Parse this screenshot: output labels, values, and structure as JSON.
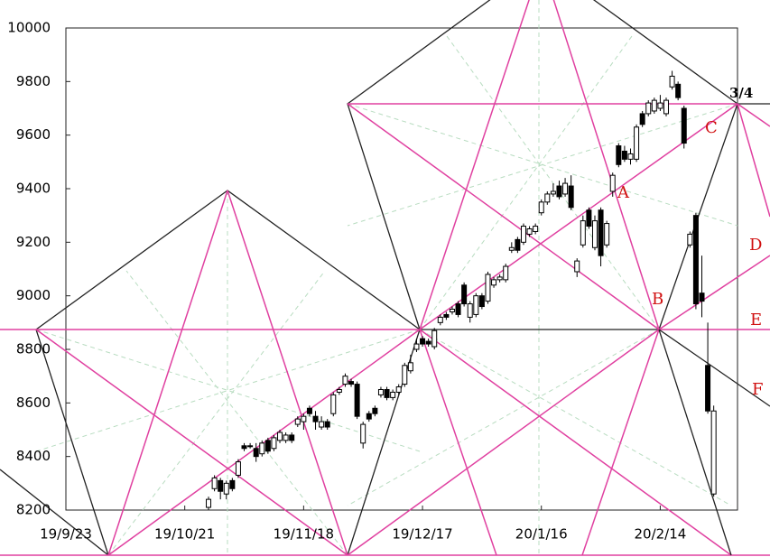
{
  "chart_data": {
    "type": "candlestick",
    "x": [
      24,
      25,
      26,
      27,
      28,
      29,
      30,
      31,
      32,
      33,
      34,
      35,
      36,
      37,
      38,
      39,
      40,
      41,
      42,
      43,
      44,
      45,
      46,
      47,
      48,
      49,
      50,
      51,
      52,
      53,
      54,
      55,
      56,
      57,
      58,
      59,
      60,
      61,
      62,
      63,
      64,
      65,
      66,
      67,
      68,
      69,
      70,
      71,
      72,
      73,
      74,
      75,
      76,
      77,
      78,
      79,
      80,
      81,
      82,
      83,
      84,
      85,
      86,
      87,
      88,
      89,
      90,
      91,
      92,
      93,
      94,
      95,
      96,
      97,
      98,
      99,
      100,
      101,
      102,
      103,
      104,
      105,
      106,
      107,
      108,
      109
    ],
    "open": [
      8210,
      8280,
      8310,
      8260,
      8310,
      8330,
      8440,
      8440,
      8430,
      8410,
      8460,
      8430,
      8460,
      8460,
      8480,
      8520,
      8530,
      8580,
      8550,
      8510,
      8530,
      8560,
      8640,
      8670,
      8680,
      8670,
      8450,
      8560,
      8580,
      8630,
      8650,
      8620,
      8640,
      8670,
      8720,
      8800,
      8840,
      8830,
      8810,
      8900,
      8930,
      8940,
      8970,
      9040,
      8920,
      8930,
      9000,
      8980,
      9040,
      9060,
      9060,
      9170,
      9210,
      9200,
      9230,
      9240,
      9310,
      9350,
      9380,
      9410,
      9380,
      9410,
      9090,
      9190,
      9320,
      9180,
      9320,
      9190,
      9390,
      9560,
      9540,
      9510,
      9510,
      9680,
      9680,
      9690,
      9700,
      9680,
      9780,
      9790,
      9700,
      9190,
      9300,
      9010,
      8740,
      8260
    ],
    "high": [
      8250,
      8330,
      8320,
      8310,
      8320,
      8390,
      8450,
      8450,
      8450,
      8460,
      8470,
      8480,
      8500,
      8490,
      8490,
      8550,
      8560,
      8590,
      8570,
      8550,
      8540,
      8640,
      8660,
      8710,
      8690,
      8680,
      8530,
      8570,
      8590,
      8660,
      8660,
      8650,
      8670,
      8750,
      8780,
      8840,
      8850,
      8840,
      8880,
      8930,
      8940,
      8960,
      8980,
      9050,
      8980,
      9010,
      9010,
      9090,
      9070,
      9080,
      9120,
      9200,
      9220,
      9270,
      9260,
      9270,
      9360,
      9390,
      9420,
      9430,
      9440,
      9450,
      9140,
      9300,
      9330,
      9300,
      9330,
      9280,
      9460,
      9570,
      9560,
      9550,
      9640,
      9690,
      9730,
      9740,
      9750,
      9740,
      9840,
      9800,
      9710,
      9240,
      9310,
      9150,
      8900,
      8590
    ],
    "low": [
      8200,
      8270,
      8240,
      8240,
      8270,
      8320,
      8420,
      8430,
      8380,
      8400,
      8410,
      8420,
      8450,
      8450,
      8450,
      8510,
      8500,
      8550,
      8500,
      8500,
      8500,
      8550,
      8630,
      8660,
      8660,
      8540,
      8430,
      8530,
      8550,
      8620,
      8610,
      8610,
      8630,
      8660,
      8710,
      8790,
      8810,
      8810,
      8800,
      8890,
      8910,
      8930,
      8920,
      8960,
      8900,
      8920,
      8950,
      8970,
      9030,
      9050,
      9050,
      9160,
      9160,
      9190,
      9220,
      9230,
      9300,
      9340,
      9370,
      9360,
      9370,
      9320,
      9070,
      9180,
      9250,
      9170,
      9110,
      9180,
      9370,
      9480,
      9500,
      9490,
      9500,
      9630,
      9670,
      9680,
      9690,
      9670,
      9770,
      9730,
      9550,
      9180,
      8950,
      8920,
      8560,
      8250
    ],
    "close": [
      8240,
      8320,
      8270,
      8300,
      8280,
      8380,
      8430,
      8440,
      8400,
      8450,
      8420,
      8470,
      8490,
      8480,
      8460,
      8540,
      8550,
      8560,
      8530,
      8530,
      8510,
      8630,
      8650,
      8700,
      8670,
      8550,
      8520,
      8540,
      8560,
      8650,
      8620,
      8640,
      8660,
      8740,
      8750,
      8820,
      8820,
      8820,
      8870,
      8920,
      8920,
      8950,
      8930,
      8970,
      8970,
      9000,
      8960,
      9080,
      9060,
      9070,
      9110,
      9180,
      9170,
      9260,
      9250,
      9260,
      9350,
      9380,
      9390,
      9370,
      9420,
      9330,
      9130,
      9280,
      9260,
      9280,
      9150,
      9270,
      9450,
      9490,
      9510,
      9530,
      9630,
      9640,
      9720,
      9730,
      9720,
      9730,
      9820,
      9740,
      9570,
      9230,
      8970,
      8980,
      8570,
      8570
    ],
    "xlim": [
      0,
      113
    ],
    "xticks": [
      {
        "value": 0,
        "label": "19/9/23"
      },
      {
        "value": 20,
        "label": "19/10/21"
      },
      {
        "value": 40,
        "label": "19/11/18"
      },
      {
        "value": 60,
        "label": "19/12/17"
      },
      {
        "value": 80,
        "label": "20/1/16"
      },
      {
        "value": 100,
        "label": "20/2/14"
      }
    ],
    "ylim": [
      8200,
      10000
    ],
    "yticks": [
      8200,
      8400,
      8600,
      8800,
      9000,
      9200,
      9400,
      9600,
      9800,
      10000
    ],
    "annotations": [
      "A",
      "B",
      "C",
      "D",
      "E",
      "F",
      "3/4"
    ]
  }
}
